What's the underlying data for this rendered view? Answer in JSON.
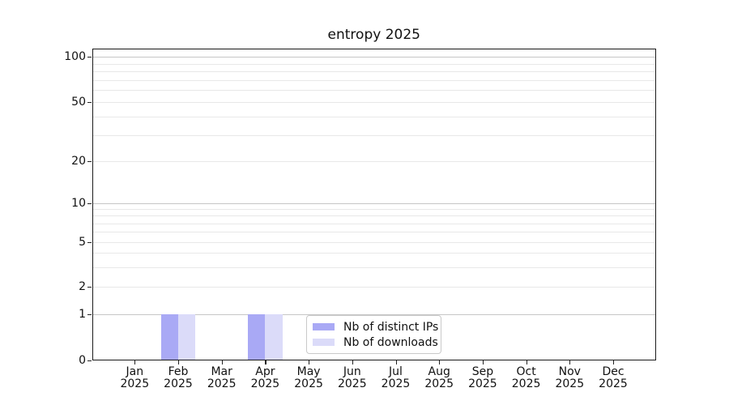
{
  "chart_data": {
    "type": "bar",
    "title": "entropy 2025",
    "categories": [
      "Jan",
      "Feb",
      "Mar",
      "Apr",
      "May",
      "Jun",
      "Jul",
      "Aug",
      "Sep",
      "Oct",
      "Nov",
      "Dec"
    ],
    "category_year": "2025",
    "series": [
      {
        "name": "Nb of distinct IPs",
        "color": "#a9a9f5",
        "values": [
          0,
          1,
          0,
          1,
          0,
          0,
          0,
          0,
          0,
          0,
          0,
          0
        ]
      },
      {
        "name": "Nb of downloads",
        "color": "#dbdbf9",
        "values": [
          0,
          1,
          0,
          1,
          0,
          0,
          0,
          0,
          0,
          0,
          0,
          0
        ]
      }
    ],
    "yscale": "symlog",
    "yticks": [
      0,
      1,
      2,
      5,
      10,
      20,
      50,
      100
    ],
    "ylim": [
      0,
      115
    ],
    "xlabel": "",
    "ylabel": "",
    "grid": "horizontal major and minor log gridlines",
    "gridline_major_values": [
      1,
      10,
      100
    ],
    "legend_position": "lower center inside axes",
    "colors": {
      "grid_major": "#c6c6c6",
      "grid_minor": "#e8e8e8",
      "axis": "#1a1a1a",
      "text": "#111111"
    }
  }
}
